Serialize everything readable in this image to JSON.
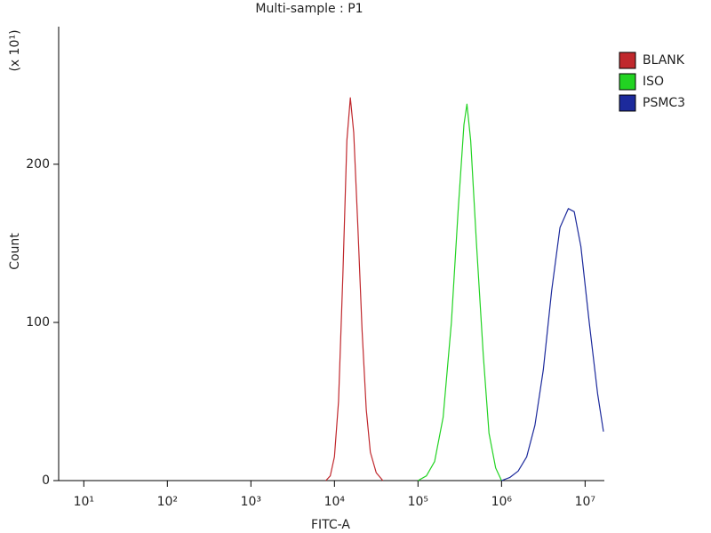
{
  "chart_data": {
    "type": "line",
    "title": "Multi-sample : P1",
    "xlabel": "FITC-A",
    "ylabel": "Count",
    "annotation": "(x 10¹)",
    "xscale": "log",
    "xlim": [
      5,
      17000000
    ],
    "ylim": [
      0,
      287
    ],
    "xticks": [
      {
        "value": 10,
        "label": "10¹"
      },
      {
        "value": 100,
        "label": "10²"
      },
      {
        "value": 1000,
        "label": "10³"
      },
      {
        "value": 10000,
        "label": "10⁴"
      },
      {
        "value": 100000,
        "label": "10⁵"
      },
      {
        "value": 1000000,
        "label": "10⁶"
      },
      {
        "value": 10000000,
        "label": "10⁷"
      }
    ],
    "yticks": [
      0,
      100,
      200
    ],
    "legend": "outside-right",
    "series": [
      {
        "name": "BLANK",
        "color": "#c0282d",
        "x": [
          7900,
          8900,
          10000,
          11200,
          12600,
          14100,
          15500,
          17000,
          19100,
          21400,
          24000,
          26900,
          31600,
          38000
        ],
        "values": [
          0,
          3,
          15,
          50,
          130,
          215,
          242,
          220,
          160,
          95,
          45,
          18,
          5,
          0
        ]
      },
      {
        "name": "ISO",
        "color": "#22d322",
        "x": [
          100000,
          126000,
          158000,
          200000,
          251000,
          302000,
          355000,
          385000,
          427000,
          501000,
          603000,
          708000,
          851000,
          1000000
        ],
        "values": [
          0,
          3,
          12,
          40,
          100,
          170,
          225,
          238,
          215,
          150,
          80,
          30,
          8,
          0
        ]
      },
      {
        "name": "PSMC3",
        "color": "#1c2a9c",
        "x": [
          1000000,
          1260000,
          1580000,
          2000000,
          2510000,
          3160000,
          3980000,
          5010000,
          6310000,
          7410000,
          8910000,
          11200000,
          14100000,
          16600000
        ],
        "values": [
          0,
          2,
          6,
          15,
          35,
          70,
          120,
          160,
          172,
          170,
          148,
          100,
          55,
          31
        ]
      }
    ]
  }
}
